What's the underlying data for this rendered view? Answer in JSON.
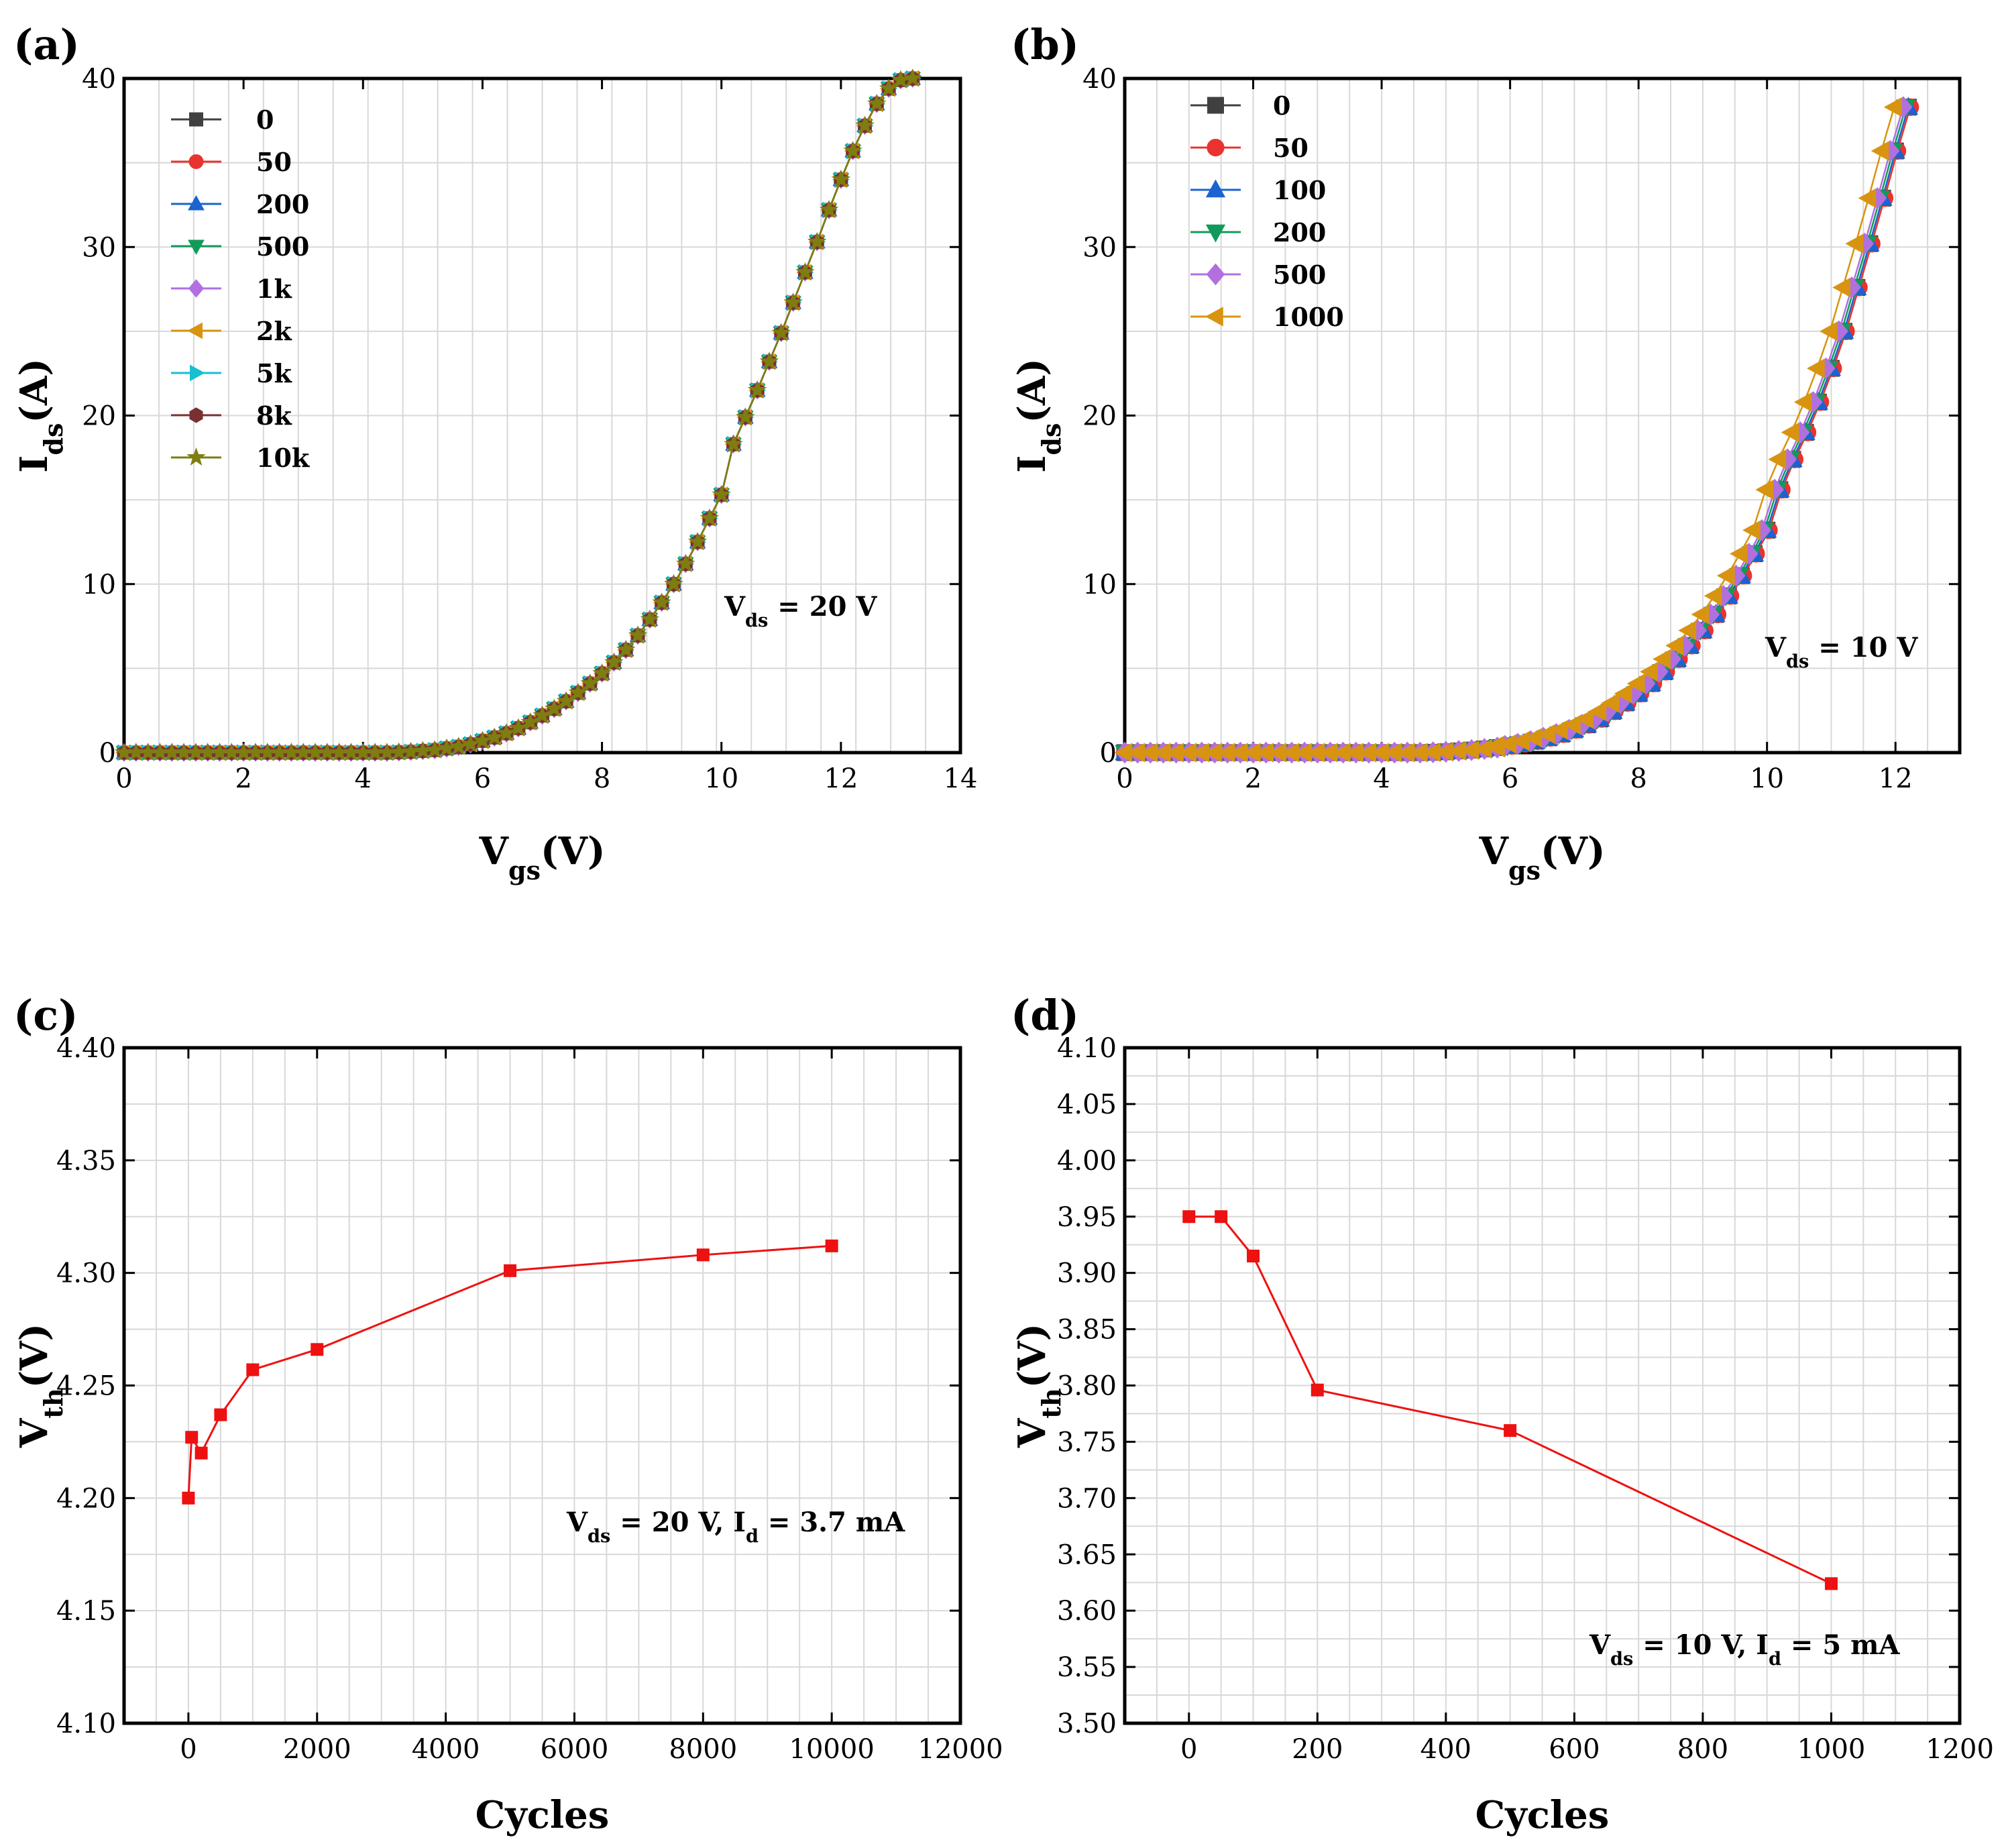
{
  "chart_data": [
    {
      "panel_label": "(a)",
      "type": "line",
      "xlabel": "V",
      "xlabel_sub": "gs",
      "xlabel_tail": "(V)",
      "ylabel": "I",
      "ylabel_sub": "ds",
      "ylabel_tail": "(A)",
      "xlim": [
        0,
        14
      ],
      "ylim": [
        0,
        40
      ],
      "x_ticks": [
        "0",
        "2",
        "4",
        "6",
        "8",
        "10",
        "12",
        "14"
      ],
      "y_ticks": [
        "0",
        "10",
        "20",
        "30",
        "40"
      ],
      "grid": true,
      "legend_position": "top-left",
      "annotation": {
        "main": "V",
        "sub": "ds",
        "tail": " = 20 V"
      },
      "series": [
        {
          "name": "0",
          "color": "#404040",
          "marker": "square"
        },
        {
          "name": "50",
          "color": "#e8332f",
          "marker": "circle"
        },
        {
          "name": "200",
          "color": "#1a63d1",
          "marker": "triangle-up"
        },
        {
          "name": "500",
          "color": "#119a5a",
          "marker": "triangle-down"
        },
        {
          "name": "1k",
          "color": "#b16fe0",
          "marker": "diamond"
        },
        {
          "name": "2k",
          "color": "#d89410",
          "marker": "triangle-left"
        },
        {
          "name": "5k",
          "color": "#17c0d0",
          "marker": "triangle-right"
        },
        {
          "name": "8k",
          "color": "#7a3030",
          "marker": "hexagon"
        },
        {
          "name": "10k",
          "color": "#7d7d10",
          "marker": "star"
        }
      ],
      "x": [
        0,
        0.2,
        0.4,
        0.6,
        0.8,
        1.0,
        1.2,
        1.4,
        1.6,
        1.8,
        2.0,
        2.2,
        2.4,
        2.6,
        2.8,
        3.0,
        3.2,
        3.4,
        3.6,
        3.8,
        4.0,
        4.2,
        4.4,
        4.6,
        4.8,
        5.0,
        5.2,
        5.4,
        5.6,
        5.8,
        6.0,
        6.2,
        6.4,
        6.6,
        6.8,
        7.0,
        7.2,
        7.4,
        7.6,
        7.8,
        8.0,
        8.2,
        8.4,
        8.6,
        8.8,
        9.0,
        9.2,
        9.4,
        9.6,
        9.8,
        10.0,
        10.2,
        10.4,
        10.6,
        10.8,
        11.0,
        11.2,
        11.4,
        11.6,
        11.8,
        12.0,
        12.2,
        12.4,
        12.6,
        12.8,
        13.0,
        13.2
      ],
      "y": [
        0,
        0,
        0,
        0,
        0,
        0,
        0,
        0,
        0,
        0,
        0,
        0,
        0,
        0,
        0,
        0,
        0,
        0,
        0,
        0,
        0,
        0,
        0,
        0.02,
        0.05,
        0.1,
        0.15,
        0.25,
        0.35,
        0.5,
        0.7,
        0.9,
        1.15,
        1.45,
        1.8,
        2.2,
        2.6,
        3.05,
        3.55,
        4.1,
        4.7,
        5.35,
        6.1,
        6.95,
        7.9,
        8.9,
        10.0,
        11.2,
        12.5,
        13.9,
        15.3,
        18.3,
        19.9,
        21.5,
        23.2,
        24.9,
        26.7,
        28.5,
        30.3,
        32.2,
        34.0,
        35.7,
        37.2,
        38.5,
        39.4,
        39.9,
        40.0
      ]
    },
    {
      "panel_label": "(b)",
      "type": "line",
      "xlabel": "V",
      "xlabel_sub": "gs",
      "xlabel_tail": "(V)",
      "ylabel": "I",
      "ylabel_sub": "ds",
      "ylabel_tail": "(A)",
      "xlim": [
        0,
        13
      ],
      "ylim": [
        0,
        40
      ],
      "x_ticks": [
        "0",
        "2",
        "4",
        "6",
        "8",
        "10",
        "12"
      ],
      "y_ticks": [
        "0",
        "10",
        "20",
        "30",
        "40"
      ],
      "grid": true,
      "legend_position": "top-left",
      "annotation": {
        "main": "V",
        "sub": "ds",
        "tail": " = 10 V"
      },
      "series": [
        {
          "name": "0",
          "color": "#404040",
          "marker": "square",
          "shift": 0
        },
        {
          "name": "50",
          "color": "#e8332f",
          "marker": "circle",
          "shift": 0.03
        },
        {
          "name": "100",
          "color": "#1a63d1",
          "marker": "triangle-up",
          "shift": 0
        },
        {
          "name": "200",
          "color": "#119a5a",
          "marker": "triangle-down",
          "shift": -0.04
        },
        {
          "name": "500",
          "color": "#b16fe0",
          "marker": "diamond",
          "shift": -0.08
        },
        {
          "name": "1000",
          "color": "#d89410",
          "marker": "triangle-left",
          "shift": -0.22
        }
      ],
      "x": [
        0,
        0.2,
        0.4,
        0.6,
        0.8,
        1.0,
        1.2,
        1.4,
        1.6,
        1.8,
        2.0,
        2.2,
        2.4,
        2.6,
        2.8,
        3.0,
        3.2,
        3.4,
        3.6,
        3.8,
        4.0,
        4.2,
        4.4,
        4.6,
        4.8,
        5.0,
        5.2,
        5.4,
        5.6,
        5.8,
        6.0,
        6.2,
        6.4,
        6.6,
        6.8,
        7.0,
        7.2,
        7.4,
        7.6,
        7.8,
        8.0,
        8.2,
        8.4,
        8.6,
        8.8,
        9.0,
        9.2,
        9.4,
        9.6,
        9.8,
        10.0,
        10.2,
        10.4,
        10.6,
        10.8,
        11.0,
        11.2,
        11.4,
        11.6,
        11.8,
        12.0,
        12.2
      ],
      "y": [
        0,
        0,
        0,
        0,
        0,
        0,
        0,
        0,
        0,
        0,
        0,
        0,
        0,
        0,
        0,
        0,
        0,
        0,
        0,
        0,
        0,
        0,
        0,
        0,
        0.02,
        0.05,
        0.1,
        0.15,
        0.22,
        0.3,
        0.4,
        0.52,
        0.68,
        0.88,
        1.1,
        1.35,
        1.65,
        2.0,
        2.45,
        2.95,
        3.5,
        4.1,
        4.8,
        5.55,
        6.35,
        7.25,
        8.2,
        9.3,
        10.5,
        11.8,
        13.2,
        15.6,
        17.4,
        19.0,
        20.8,
        22.8,
        25.0,
        27.6,
        30.2,
        32.9,
        35.7,
        38.3
      ]
    },
    {
      "panel_label": "(c)",
      "type": "line",
      "xlabel": "Cycles",
      "xlabel_sub": "",
      "xlabel_tail": "",
      "ylabel": "V",
      "ylabel_sub": "th",
      "ylabel_tail": "(V)",
      "xlim": [
        -1000,
        12000
      ],
      "ylim": [
        4.1,
        4.4
      ],
      "x_ticks": [
        "0",
        "2000",
        "4000",
        "6000",
        "8000",
        "10000",
        "12000"
      ],
      "y_ticks": [
        "4.10",
        "4.15",
        "4.20",
        "4.25",
        "4.30",
        "4.35",
        "4.40"
      ],
      "grid": true,
      "annotation": {
        "main": "V",
        "sub": "ds",
        "tail": " = 20 V, I",
        "sub2": "d",
        "tail2": " = 3.7 mA"
      },
      "series": [
        {
          "color": "#ee1111",
          "marker": "square",
          "x": [
            0,
            50,
            200,
            500,
            1000,
            2000,
            5000,
            8000,
            10000
          ],
          "y": [
            4.2,
            4.227,
            4.22,
            4.237,
            4.257,
            4.266,
            4.301,
            4.308,
            4.312
          ]
        }
      ]
    },
    {
      "panel_label": "(d)",
      "type": "line",
      "xlabel": "Cycles",
      "xlabel_sub": "",
      "xlabel_tail": "",
      "ylabel": "V",
      "ylabel_sub": "th",
      "ylabel_tail": "(V)",
      "xlim": [
        -100,
        1200
      ],
      "ylim": [
        3.5,
        4.1
      ],
      "x_ticks": [
        "0",
        "200",
        "400",
        "600",
        "800",
        "1000",
        "1200"
      ],
      "y_ticks": [
        "3.50",
        "3.55",
        "3.60",
        "3.65",
        "3.70",
        "3.75",
        "3.80",
        "3.85",
        "3.90",
        "3.95",
        "4.00",
        "4.05",
        "4.10"
      ],
      "grid": true,
      "annotation": {
        "main": "V",
        "sub": "ds",
        "tail": " = 10 V, I",
        "sub2": "d",
        "tail2": " = 5 mA"
      },
      "series": [
        {
          "color": "#ee1111",
          "marker": "square",
          "x": [
            0,
            50,
            100,
            200,
            500,
            1000
          ],
          "y": [
            3.95,
            3.95,
            3.915,
            3.796,
            3.76,
            3.624
          ]
        }
      ]
    }
  ]
}
